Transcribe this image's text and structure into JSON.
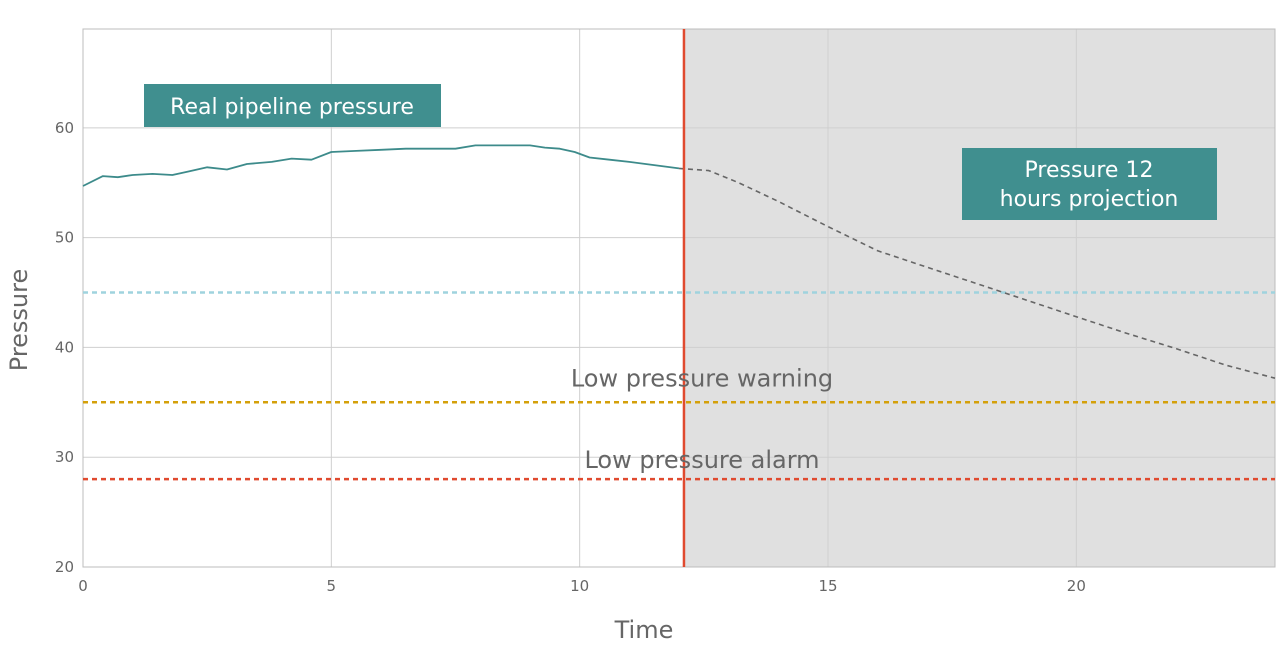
{
  "chart_data": {
    "type": "line",
    "xlabel": "Time",
    "ylabel": "Pressure",
    "xlim": [
      0,
      24
    ],
    "ylim": [
      20,
      69
    ],
    "x_ticks": [
      0,
      5,
      10,
      15,
      20
    ],
    "y_ticks": [
      20,
      30,
      40,
      50,
      60
    ],
    "grid": true,
    "series": [
      {
        "name": "Real pipeline pressure",
        "style": "solid",
        "color": "#3d8b8b",
        "x": [
          0,
          0.4,
          0.7,
          1.0,
          1.4,
          1.8,
          2.1,
          2.5,
          2.9,
          3.3,
          3.8,
          4.2,
          4.6,
          5.0,
          5.5,
          6.0,
          6.5,
          7.0,
          7.5,
          7.9,
          8.3,
          8.7,
          9.0,
          9.3,
          9.6,
          9.9,
          10.2,
          10.6,
          11.0,
          11.5,
          12.0
        ],
        "y": [
          54.7,
          55.6,
          55.5,
          55.7,
          55.8,
          55.7,
          56.0,
          56.4,
          56.2,
          56.7,
          56.9,
          57.2,
          57.1,
          57.8,
          57.9,
          58.0,
          58.1,
          58.1,
          58.1,
          58.4,
          58.4,
          58.4,
          58.4,
          58.2,
          58.1,
          57.8,
          57.3,
          57.1,
          56.9,
          56.6,
          56.3
        ]
      },
      {
        "name": "Pressure 12 hours projection",
        "style": "dashed",
        "color": "#666666",
        "x": [
          12.0,
          12.6,
          13.2,
          14.0,
          15.0,
          16.0,
          17.0,
          18.0,
          19.0,
          20.0,
          21.0,
          22.0,
          23.0,
          24.0
        ],
        "y": [
          56.3,
          56.1,
          55.0,
          53.3,
          51.0,
          48.8,
          47.3,
          45.8,
          44.3,
          42.8,
          41.3,
          39.9,
          38.4,
          37.2
        ]
      }
    ],
    "reference_lines": [
      {
        "y": 45,
        "color": "#9fd3de",
        "style": "dashed",
        "label": ""
      },
      {
        "y": 35,
        "color": "#d4a00a",
        "style": "dashed",
        "label": "Low pressure warning"
      },
      {
        "y": 28,
        "color": "#e04a2f",
        "style": "dashed",
        "label": "Low pressure alarm"
      }
    ],
    "now_marker": {
      "x": 12.1,
      "color": "#e04a2f"
    },
    "projection_region": {
      "x_start": 12.1,
      "x_end": 24,
      "color": "#e0e0e0"
    },
    "labels": {
      "real": "Real pipeline pressure",
      "projection_line1": "Pressure 12",
      "projection_line2": "hours projection"
    },
    "label_box_color": "#408f8f"
  }
}
